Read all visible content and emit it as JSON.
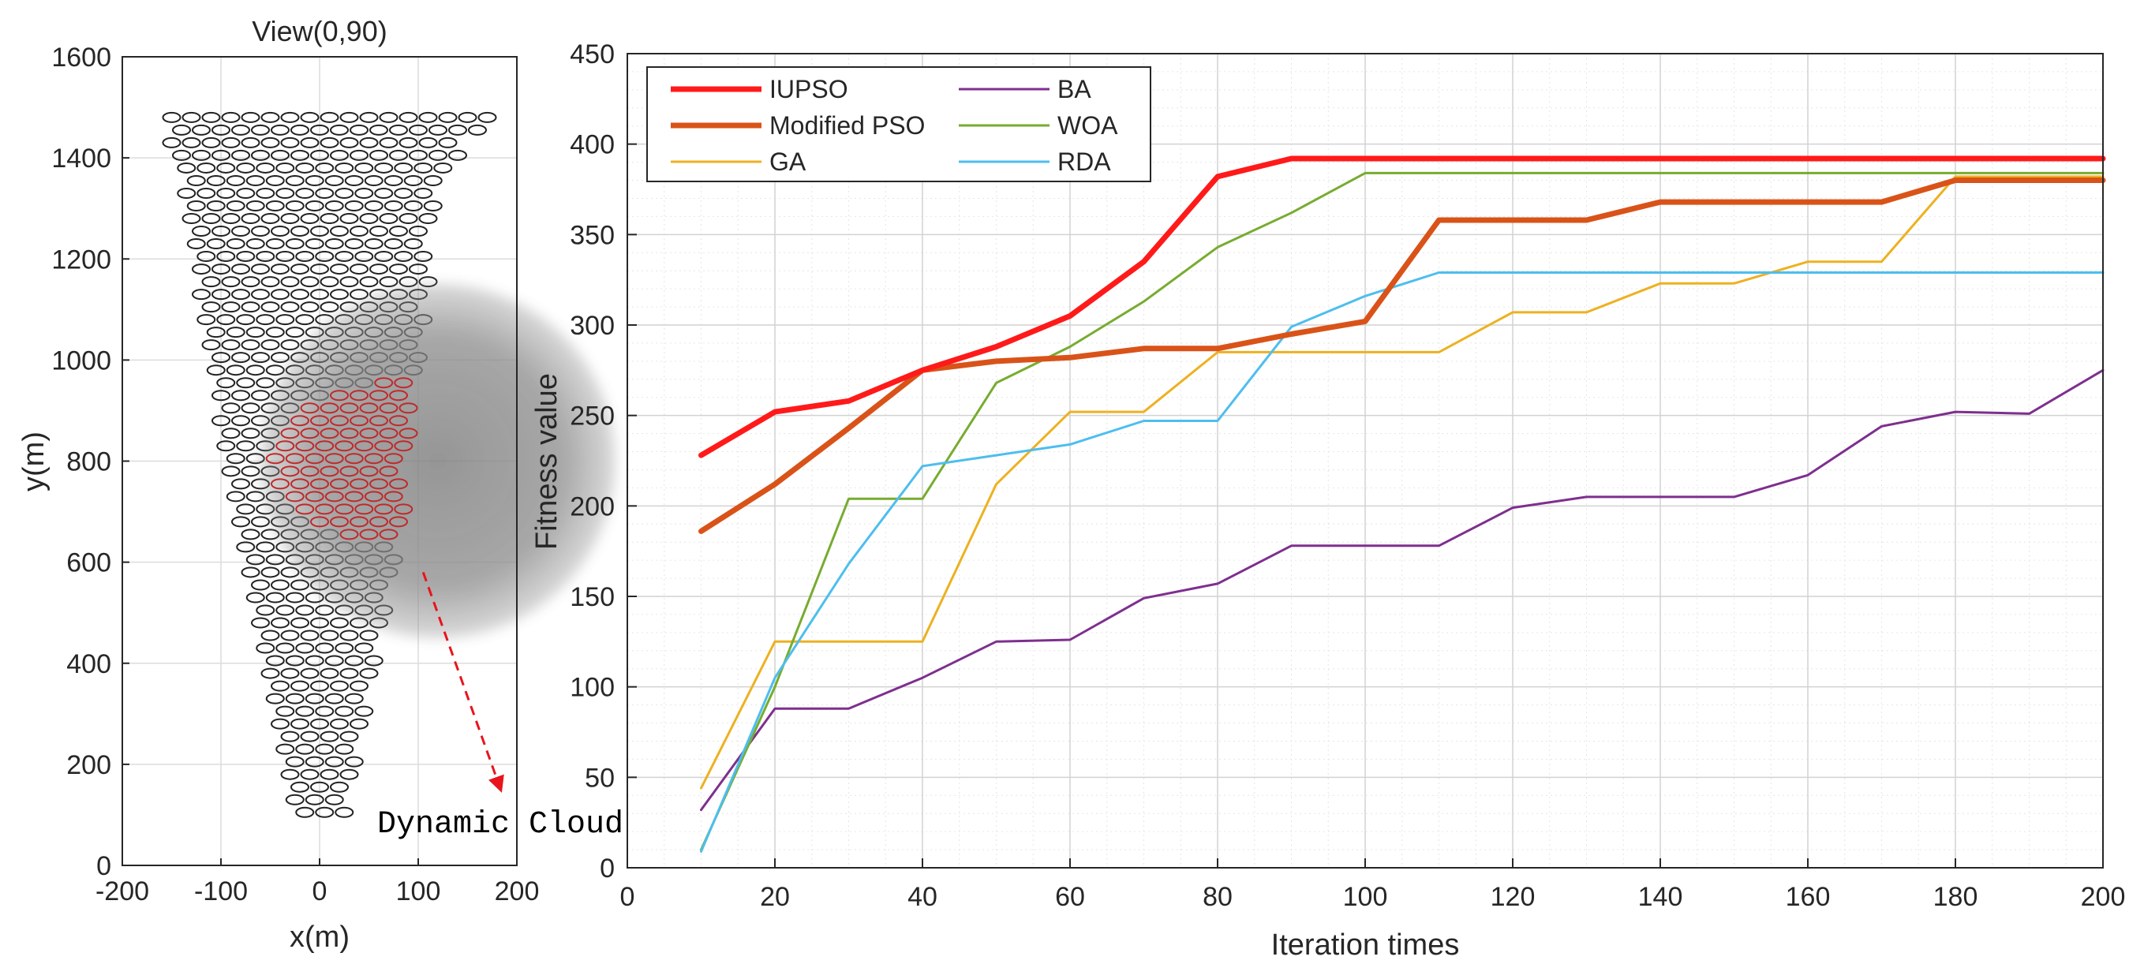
{
  "chart_data": [
    {
      "type": "scatter",
      "title": "View(0,90)",
      "xlabel": "x(m)",
      "ylabel": "y(m)",
      "xlim": [
        -200,
        200
      ],
      "ylim": [
        0,
        1600
      ],
      "xticks": [
        "-200",
        "-100",
        "0",
        "100",
        "200"
      ],
      "yticks": [
        "0",
        "200",
        "400",
        "600",
        "800",
        "1000",
        "1200",
        "1400",
        "1600"
      ],
      "grid": true,
      "marker": "ellipse-outline",
      "formation": {
        "shape": "inverted-triangle",
        "row_spacing": 25,
        "col_spacing": 20,
        "rows": [
          {
            "y": 1480,
            "x_min": -150,
            "x_max": 170
          },
          {
            "y": 1430,
            "x_min": -150,
            "x_max": 140
          },
          {
            "y": 1380,
            "x_min": -135,
            "x_max": 130
          },
          {
            "y": 1330,
            "x_min": -135,
            "x_max": 120
          },
          {
            "y": 1280,
            "x_min": -130,
            "x_max": 115
          },
          {
            "y": 1230,
            "x_min": -125,
            "x_max": 110
          },
          {
            "y": 1180,
            "x_min": -120,
            "x_max": 110
          },
          {
            "y": 1130,
            "x_min": -120,
            "x_max": 105
          },
          {
            "y": 1080,
            "x_min": -115,
            "x_max": 105
          },
          {
            "y": 1030,
            "x_min": -110,
            "x_max": 100
          },
          {
            "y": 980,
            "x_min": -105,
            "x_max": 100
          },
          {
            "y": 930,
            "x_min": -100,
            "x_max": 95
          },
          {
            "y": 880,
            "x_min": -100,
            "x_max": 90
          },
          {
            "y": 830,
            "x_min": -95,
            "x_max": 90
          },
          {
            "y": 780,
            "x_min": -90,
            "x_max": 85
          },
          {
            "y": 730,
            "x_min": -85,
            "x_max": 85
          },
          {
            "y": 680,
            "x_min": -80,
            "x_max": 80
          },
          {
            "y": 630,
            "x_min": -75,
            "x_max": 75
          },
          {
            "y": 580,
            "x_min": -70,
            "x_max": 70
          },
          {
            "y": 530,
            "x_min": -65,
            "x_max": 65
          },
          {
            "y": 480,
            "x_min": -60,
            "x_max": 60
          },
          {
            "y": 430,
            "x_min": -55,
            "x_max": 55
          },
          {
            "y": 380,
            "x_min": -50,
            "x_max": 50
          },
          {
            "y": 330,
            "x_min": -45,
            "x_max": 45
          },
          {
            "y": 280,
            "x_min": -40,
            "x_max": 40
          },
          {
            "y": 230,
            "x_min": -35,
            "x_max": 35
          },
          {
            "y": 180,
            "x_min": -30,
            "x_max": 30
          },
          {
            "y": 130,
            "x_min": -25,
            "x_max": 25
          }
        ]
      },
      "cloud": {
        "center": [
          120,
          800
        ],
        "radius": 180
      },
      "annotation": {
        "text": "Dynamic Cloud",
        "arrow_from": [
          105,
          580
        ],
        "arrow_to": [
          190,
          150
        ]
      },
      "colors": {
        "markers": "#222222",
        "cloud": "#808080",
        "covered": "#c0292b",
        "arrow": "#e8141b"
      }
    },
    {
      "type": "line",
      "title": "",
      "xlabel": "Iteration times",
      "ylabel": "Fitness value",
      "xlim": [
        0,
        200
      ],
      "ylim": [
        0,
        450
      ],
      "xticks": [
        "0",
        "20",
        "40",
        "60",
        "80",
        "100",
        "120",
        "140",
        "160",
        "180",
        "200"
      ],
      "yticks": [
        "0",
        "50",
        "100",
        "150",
        "200",
        "250",
        "300",
        "350",
        "400",
        "450"
      ],
      "grid": true,
      "legend_position": "top-left",
      "x": [
        10,
        20,
        30,
        40,
        50,
        60,
        70,
        80,
        90,
        100,
        110,
        120,
        130,
        140,
        150,
        160,
        170,
        180,
        190,
        200
      ],
      "series": [
        {
          "name": "IUPSO",
          "color": "#ff1a1a",
          "width": 7,
          "values": [
            228,
            252,
            258,
            275,
            288,
            305,
            335,
            382,
            392,
            392,
            392,
            392,
            392,
            392,
            392,
            392,
            392,
            392,
            392,
            392
          ]
        },
        {
          "name": "Modified PSO",
          "color": "#d95319",
          "width": 7,
          "values": [
            186,
            212,
            243,
            275,
            280,
            282,
            287,
            287,
            295,
            302,
            358,
            358,
            358,
            368,
            368,
            368,
            368,
            380,
            380,
            380
          ]
        },
        {
          "name": "GA",
          "color": "#edb120",
          "width": 3,
          "values": [
            44,
            125,
            125,
            125,
            212,
            252,
            252,
            285,
            285,
            285,
            285,
            307,
            307,
            323,
            323,
            335,
            335,
            382,
            382,
            382
          ]
        },
        {
          "name": "BA",
          "color": "#7e2f8e",
          "width": 3,
          "values": [
            32,
            88,
            88,
            105,
            125,
            126,
            149,
            157,
            178,
            178,
            178,
            199,
            205,
            205,
            205,
            217,
            244,
            252,
            251,
            275
          ]
        },
        {
          "name": "WOA",
          "color": "#77ac30",
          "width": 3,
          "values": [
            10,
            100,
            204,
            204,
            268,
            288,
            313,
            343,
            362,
            384,
            384,
            384,
            384,
            384,
            384,
            384,
            384,
            384,
            384,
            384
          ]
        },
        {
          "name": "RDA",
          "color": "#4dbeee",
          "width": 3,
          "values": [
            9,
            105,
            168,
            222,
            228,
            234,
            247,
            247,
            299,
            316,
            329,
            329,
            329,
            329,
            329,
            329,
            329,
            329,
            329,
            329
          ]
        }
      ]
    }
  ]
}
